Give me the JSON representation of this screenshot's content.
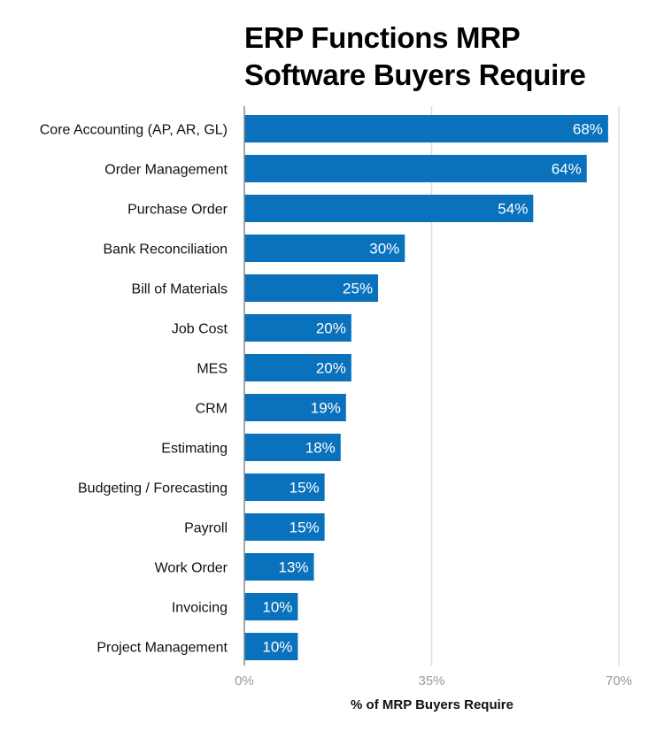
{
  "chart_data": {
    "type": "bar",
    "orientation": "horizontal",
    "title": "ERP Functions MRP Software Buyers Require",
    "title_lines": [
      "ERP Functions MRP",
      "Software Buyers Require"
    ],
    "xlabel": "% of MRP Buyers Require",
    "ylabel": "",
    "categories": [
      "Core Accounting (AP, AR, GL)",
      "Order Management",
      "Purchase Order",
      "Bank Reconciliation",
      "Bill of Materials",
      "Job Cost",
      "MES",
      "CRM",
      "Estimating",
      "Budgeting / Forecasting",
      "Payroll",
      "Work Order",
      "Invoicing",
      "Project Management"
    ],
    "values": [
      68,
      64,
      54,
      30,
      25,
      20,
      20,
      19,
      18,
      15,
      15,
      13,
      10,
      10
    ],
    "data_labels": [
      "68%",
      "64%",
      "54%",
      "30%",
      "25%",
      "20%",
      "20%",
      "19%",
      "18%",
      "15%",
      "15%",
      "13%",
      "10%",
      "10%"
    ],
    "xlim": [
      0,
      70
    ],
    "xticks": [
      0,
      35,
      70
    ],
    "xtick_labels": [
      "0%",
      "35%",
      "70%"
    ],
    "grid": true,
    "bar_color": "#0a72bd"
  }
}
